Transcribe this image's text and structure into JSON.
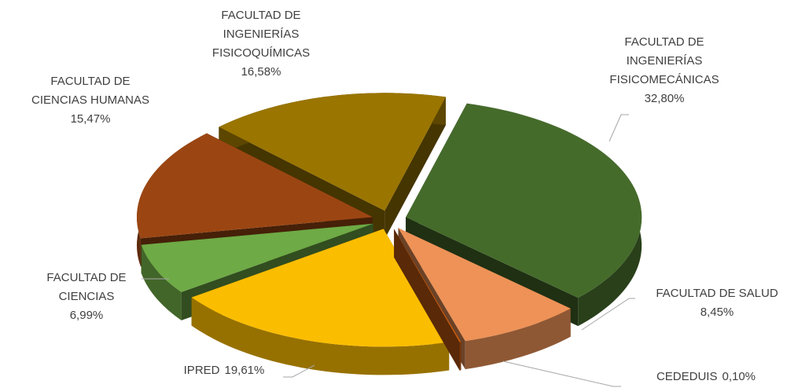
{
  "chart_data": {
    "type": "pie",
    "categories": [
      "FACULTAD DE INGENIERÍAS FISICOMECÁNICAS",
      "FACULTAD DE SALUD",
      "CEDEDUIS",
      "IPRED",
      "FACULTAD DE CIENCIAS",
      "FACULTAD DE CIENCIAS HUMANAS",
      "FACULTAD DE INGENIERÍAS FISICOQUÍMICAS"
    ],
    "values": [
      32.8,
      8.45,
      0.1,
      19.61,
      6.99,
      15.47,
      16.58
    ],
    "value_labels": [
      "32,80%",
      "8,45%",
      "0,10%",
      "19,61%",
      "6,99%",
      "15,47%",
      "16,58%"
    ],
    "colors": [
      "#456b2b",
      "#ee9257",
      "#c55a11",
      "#fbbd00",
      "#6eaa45",
      "#9b4612",
      "#9a7500"
    ]
  }
}
